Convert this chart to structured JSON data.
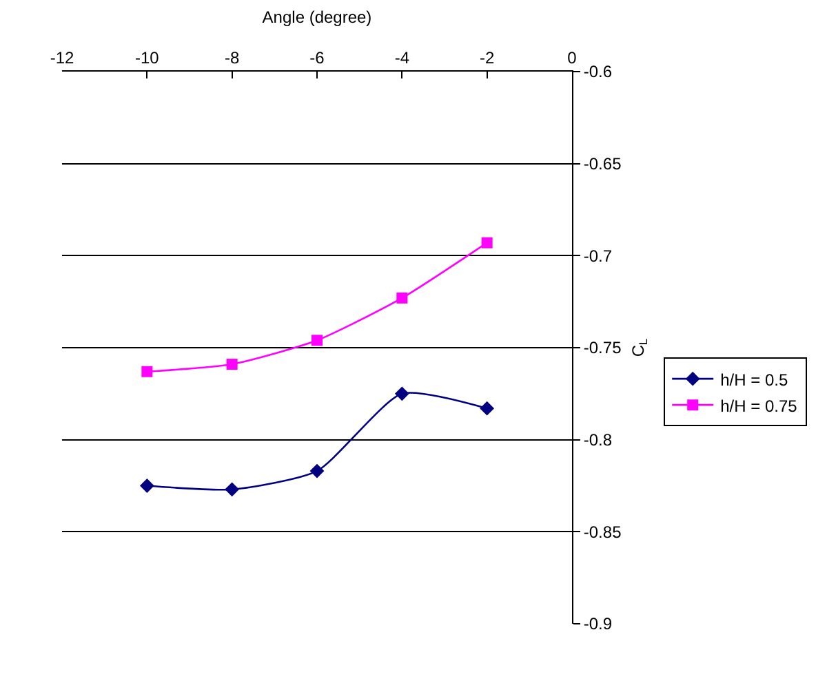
{
  "chart_data": {
    "type": "line",
    "xlabel": "Angle (degree)",
    "ylabel": "C$_{L}$",
    "x": [
      -10,
      -8,
      -6,
      -4,
      -2
    ],
    "xlim": [
      -12,
      0
    ],
    "xticks": [
      -12,
      -10,
      -8,
      -6,
      -4,
      -2,
      0
    ],
    "ylim": [
      -0.9,
      -0.6
    ],
    "yticks": [
      -0.9,
      -0.85,
      -0.8,
      -0.75,
      -0.7,
      -0.65,
      -0.6
    ],
    "grid": "y",
    "legend": "right",
    "line_style": "solid",
    "series": [
      {
        "name": "h/H = 0.5",
        "color": "#000080",
        "marker": "diamond",
        "values": [
          -0.825,
          -0.827,
          -0.817,
          -0.775,
          -0.783
        ]
      },
      {
        "name": "h/H = 0.75",
        "color": "#ff00ff",
        "marker": "square",
        "values": [
          -0.763,
          -0.759,
          -0.746,
          -0.723,
          -0.693
        ]
      }
    ]
  }
}
